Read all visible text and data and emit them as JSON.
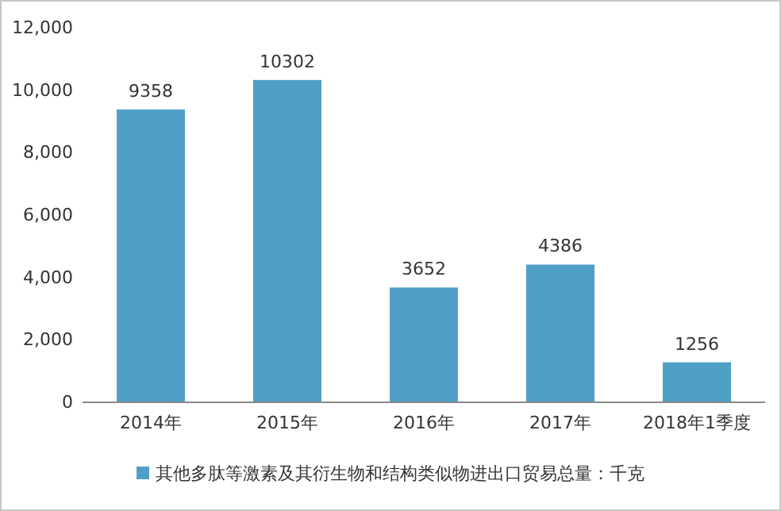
{
  "chart_data": {
    "type": "bar",
    "categories": [
      "2014年",
      "2015年",
      "2016年",
      "2017年",
      "2018年1季度"
    ],
    "series": [
      {
        "name": "其他多肽等激素及其衍生物和结构类似物进出口贸易总量：千克",
        "color": "#4f9fc6",
        "values": [
          9358,
          10302,
          3652,
          4386,
          1256
        ]
      }
    ],
    "ylim": [
      0,
      12000
    ],
    "yticks": [
      0,
      {
        "value": 2000,
        "label": "2,000"
      },
      {
        "value": 4000,
        "label": "4,000"
      },
      {
        "value": 6000,
        "label": "6,000"
      },
      {
        "value": 8000,
        "label": "8,000"
      },
      {
        "value": 10000,
        "label": "10,000"
      },
      {
        "value": 12000,
        "label": "12,000"
      }
    ],
    "data_labels": true,
    "grid": false,
    "legend": "bottom"
  }
}
